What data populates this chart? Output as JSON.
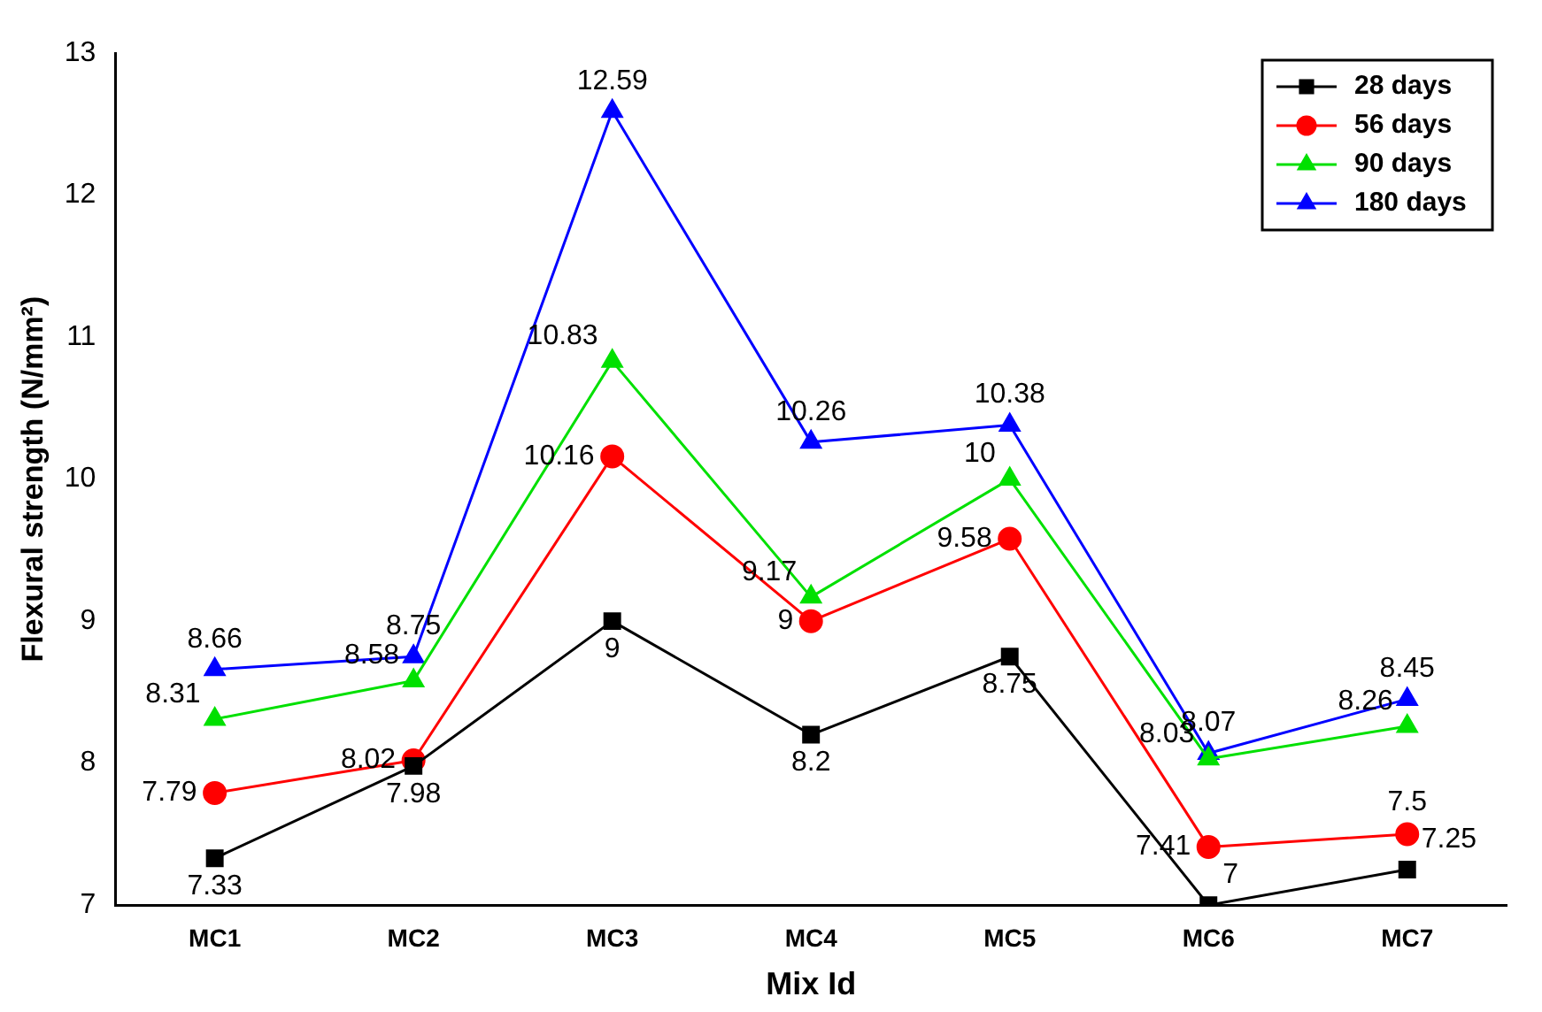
{
  "chart_data": {
    "type": "line",
    "xlabel": "Mix Id",
    "ylabel": "Flexural strength (N/mm²)",
    "categories": [
      "MC1",
      "MC2",
      "MC3",
      "MC4",
      "MC5",
      "MC6",
      "MC7"
    ],
    "series": [
      {
        "name": "28 days",
        "color": "#000000",
        "marker": "square",
        "values": [
          7.33,
          7.98,
          9,
          8.2,
          8.75,
          7,
          7.25
        ]
      },
      {
        "name": "56 days",
        "color": "#ff0000",
        "marker": "circle",
        "values": [
          7.79,
          8.02,
          10.16,
          9,
          9.58,
          7.41,
          7.5
        ]
      },
      {
        "name": "90 days",
        "color": "#00e000",
        "marker": "triangle",
        "values": [
          8.31,
          8.58,
          10.83,
          9.17,
          10,
          8.03,
          8.26
        ]
      },
      {
        "name": "180 days",
        "color": "#0000ff",
        "marker": "triangle",
        "values": [
          8.66,
          8.75,
          12.59,
          10.26,
          10.38,
          8.07,
          8.45
        ]
      }
    ],
    "ylim": [
      7,
      13
    ],
    "yticks": [
      7,
      8,
      9,
      10,
      11,
      12,
      13
    ],
    "grid": false,
    "legend": "top right",
    "data_labels": true,
    "line_style": "solid"
  }
}
